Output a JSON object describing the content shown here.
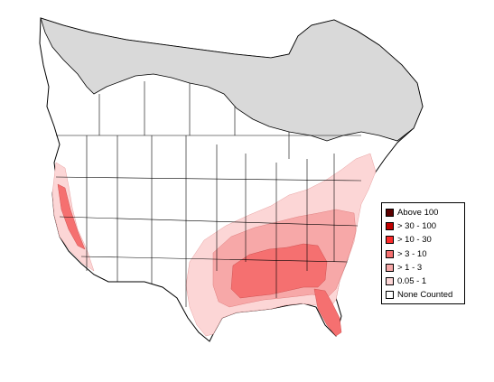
{
  "colors": {
    "land": "#ffffff",
    "boundary": "#000000",
    "no_data": "#d9d9d9",
    "classes": [
      "#5c0000",
      "#c00000",
      "#ff2b2b",
      "#f57070",
      "#f7a8a8",
      "#fcd6d6",
      "#ffffff"
    ]
  },
  "legend": {
    "items": [
      {
        "label": "Above 100",
        "color": "#5c0000"
      },
      {
        "label": "> 30 - 100",
        "color": "#c00000"
      },
      {
        "label": "> 10 - 30",
        "color": "#ff2b2b"
      },
      {
        "label": "> 3 - 10",
        "color": "#f57070"
      },
      {
        "label": "> 1 - 3",
        "color": "#f7a8a8"
      },
      {
        "label": "0.05 - 1",
        "color": "#fcd6d6"
      },
      {
        "label": "None Counted",
        "color": "#ffffff"
      }
    ]
  }
}
